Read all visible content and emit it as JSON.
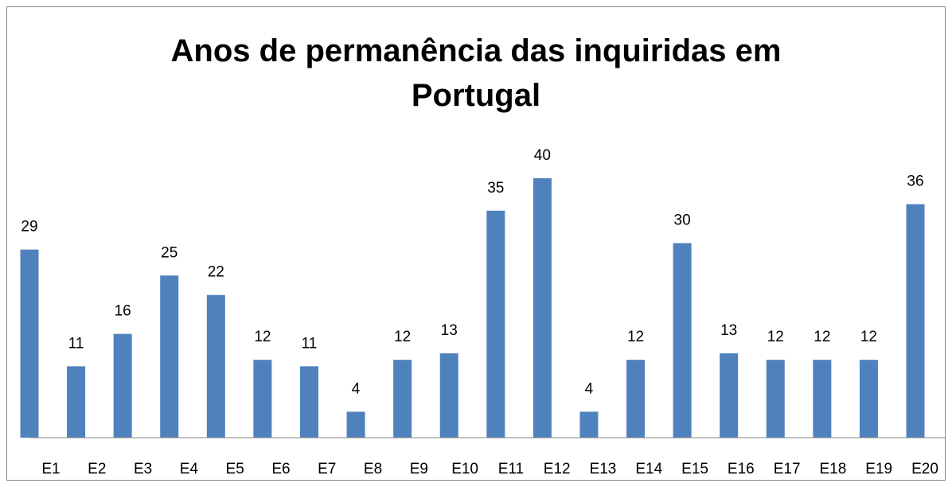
{
  "chart_data": {
    "type": "bar",
    "title": "Anos de permanência das inquiridas em Portugal",
    "categories": [
      "E1",
      "E2",
      "E3",
      "E4",
      "E5",
      "E6",
      "E7",
      "E8",
      "E9",
      "E10",
      "E11",
      "E12",
      "E13",
      "E14",
      "E15",
      "E16",
      "E17",
      "E18",
      "E19",
      "E20"
    ],
    "values": [
      29,
      11,
      16,
      25,
      22,
      12,
      11,
      4,
      12,
      13,
      35,
      40,
      4,
      12,
      30,
      13,
      12,
      12,
      12,
      36
    ],
    "color": "#4f81bd"
  }
}
